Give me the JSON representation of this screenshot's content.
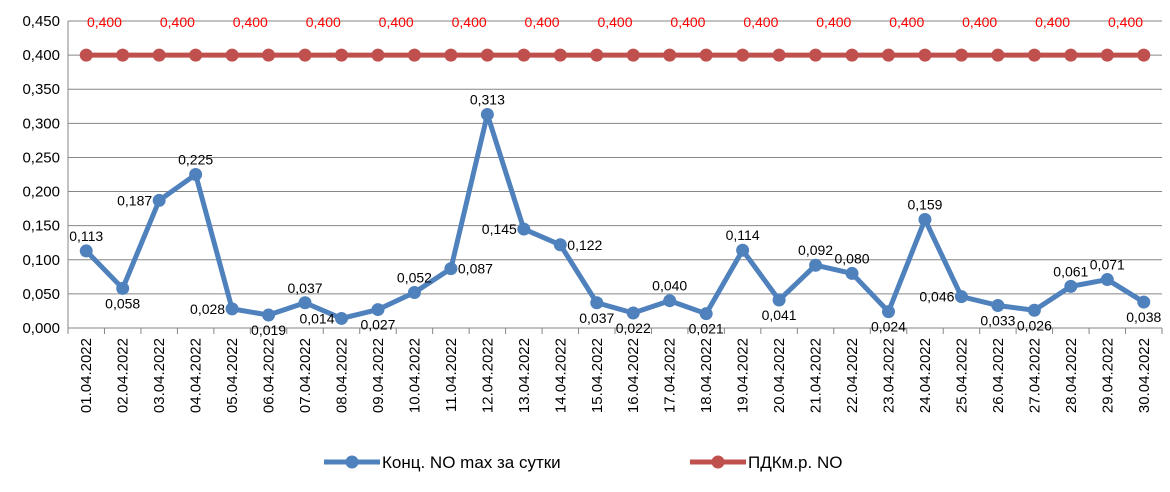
{
  "chart_data": {
    "type": "line",
    "title": "",
    "xlabel": "",
    "ylabel": "",
    "ylim": [
      0,
      0.45
    ],
    "yticks": [
      "0,000",
      "0,050",
      "0,100",
      "0,150",
      "0,200",
      "0,250",
      "0,300",
      "0,350",
      "0,400",
      "0,450"
    ],
    "grid": true,
    "legend_position": "bottom",
    "categories": [
      "01.04.2022",
      "02.04.2022",
      "03.04.2022",
      "04.04.2022",
      "05.04.2022",
      "06.04.2022",
      "07.04.2022",
      "08.04.2022",
      "09.04.2022",
      "10.04.2022",
      "11.04.2022",
      "12.04.2022",
      "13.04.2022",
      "14.04.2022",
      "15.04.2022",
      "16.04.2022",
      "17.04.2022",
      "18.04.2022",
      "19.04.2022",
      "20.04.2022",
      "21.04.2022",
      "22.04.2022",
      "23.04.2022",
      "24.04.2022",
      "25.04.2022",
      "26.04.2022",
      "27.04.2022",
      "28.04.2022",
      "29.04.2022",
      "30.04.2022"
    ],
    "series": [
      {
        "name": "Конц. NO max за сутки",
        "color": "#4F81BD",
        "values": [
          0.113,
          0.058,
          0.187,
          0.225,
          0.028,
          0.019,
          0.037,
          0.014,
          0.027,
          0.052,
          0.087,
          0.313,
          0.145,
          0.122,
          0.037,
          0.022,
          0.04,
          0.021,
          0.114,
          0.041,
          0.092,
          0.08,
          0.024,
          0.159,
          0.046,
          0.033,
          0.026,
          0.061,
          0.071,
          0.038
        ],
        "labels": [
          "0,113",
          "0,058",
          "0,187",
          "0,225",
          "0,028",
          "0,019",
          "0,037",
          "0,014",
          "0,027",
          "0,052",
          "0,087",
          "0,313",
          "0,145",
          "0,122",
          "0,037",
          "0,022",
          "0,040",
          "0,021",
          "0,114",
          "0,041",
          "0,092",
          "0,080",
          "0,024",
          "0,159",
          "0,046",
          "0,033",
          "0,026",
          "0,061",
          "0,071",
          "0,038"
        ],
        "label_position": [
          "above",
          "below",
          "left",
          "above",
          "left",
          "below",
          "above",
          "left",
          "below",
          "above",
          "right",
          "above",
          "left",
          "right",
          "below",
          "below",
          "above",
          "below",
          "above",
          "below",
          "above",
          "above",
          "below",
          "above",
          "left",
          "below",
          "below",
          "above",
          "above",
          "below"
        ]
      },
      {
        "name": "ПДКм.р. NO",
        "color": "#C0504D",
        "label_color": "#FF0000",
        "values": [
          0.4,
          0.4,
          0.4,
          0.4,
          0.4,
          0.4,
          0.4,
          0.4,
          0.4,
          0.4,
          0.4,
          0.4,
          0.4,
          0.4,
          0.4,
          0.4,
          0.4,
          0.4,
          0.4,
          0.4,
          0.4,
          0.4,
          0.4,
          0.4,
          0.4,
          0.4,
          0.4,
          0.4,
          0.4,
          0.4
        ],
        "labels": [
          "0,400",
          "",
          "0,400",
          "",
          "0,400",
          "",
          "0,400",
          "",
          "0,400",
          "",
          "0,400",
          "",
          "0,400",
          "",
          "0,400",
          "",
          "0,400",
          "",
          "0,400",
          "",
          "0,400",
          "",
          "0,400",
          "",
          "0,400",
          "",
          "0,400",
          "",
          "0,400",
          ""
        ],
        "label_position": "above"
      }
    ]
  }
}
